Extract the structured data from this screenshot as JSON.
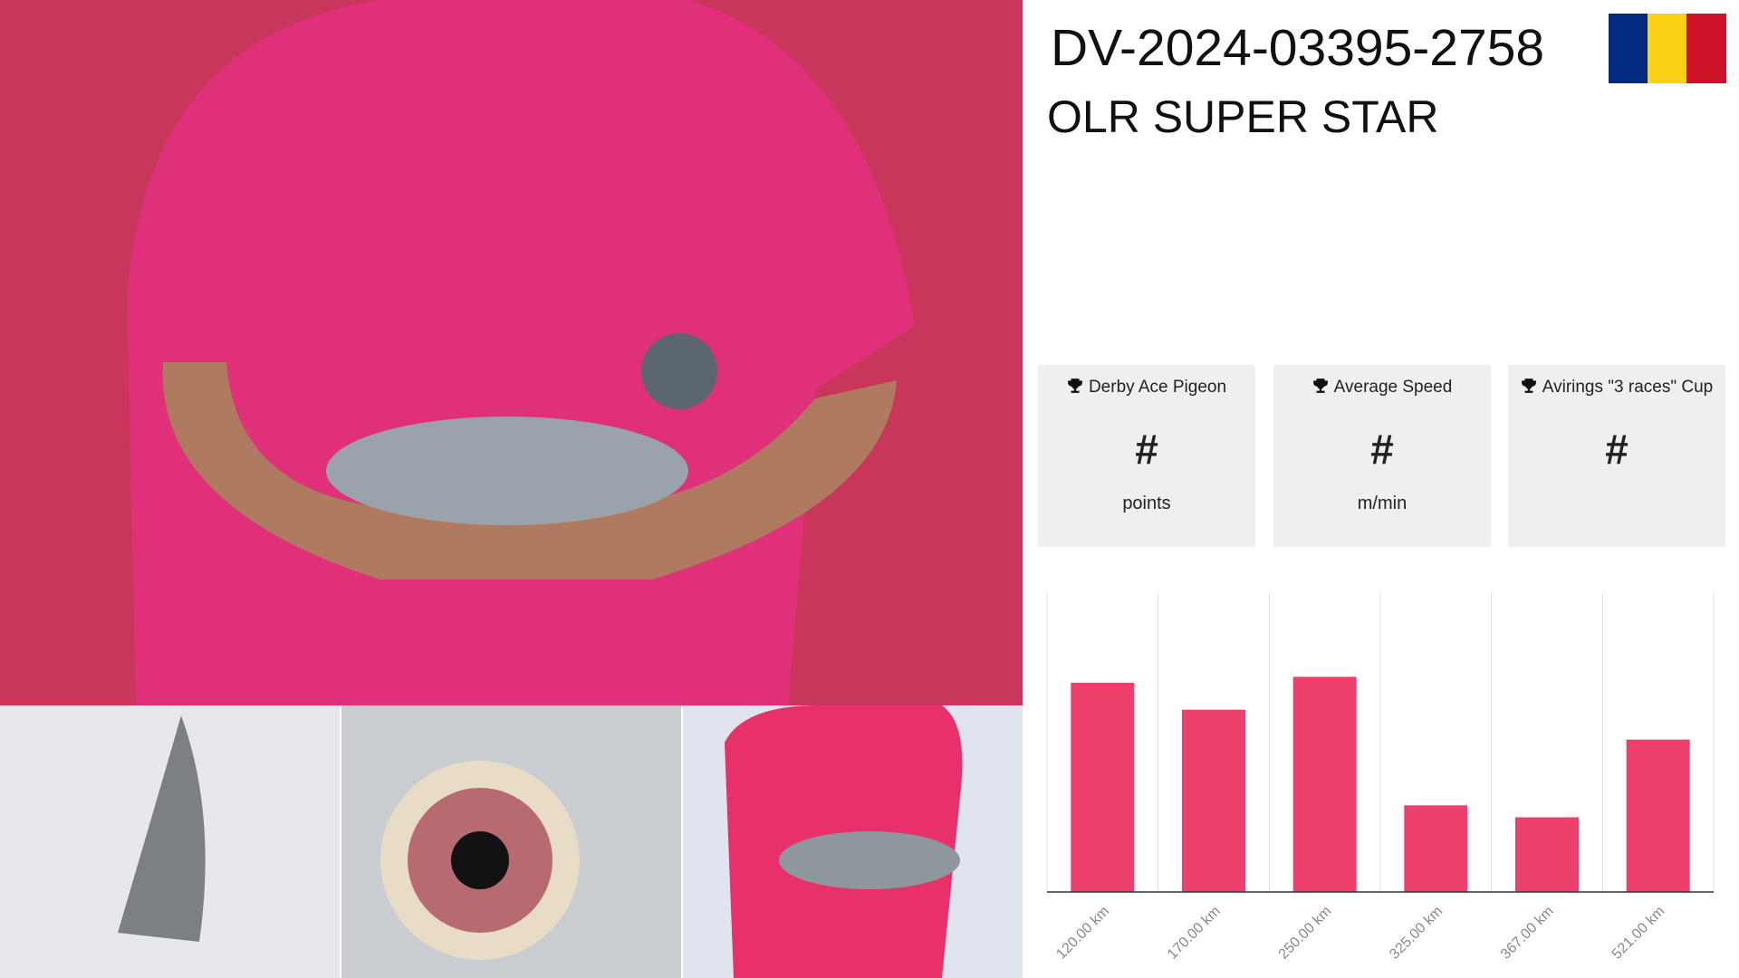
{
  "header": {
    "title": "DV-2024-03395-2758",
    "subtitle": "OLR SUPER STAR"
  },
  "stats": [
    {
      "title": "Derby Ace Pigeon",
      "value": "#",
      "unit": "points"
    },
    {
      "title": "Average Speed",
      "value": "#",
      "unit": "m/min"
    },
    {
      "title": "Avirings \"3 races\" Cup",
      "value": "#",
      "unit": null
    }
  ],
  "chart_data": {
    "type": "bar",
    "categories": [
      "120.00 km",
      "170.00 km",
      "250.00 km",
      "325.00 km",
      "367.00 km",
      "521.00 km"
    ],
    "values": [
      70,
      61,
      72,
      29,
      25,
      51
    ],
    "color": "#ec3f6c",
    "ylim": [
      0,
      100
    ]
  }
}
